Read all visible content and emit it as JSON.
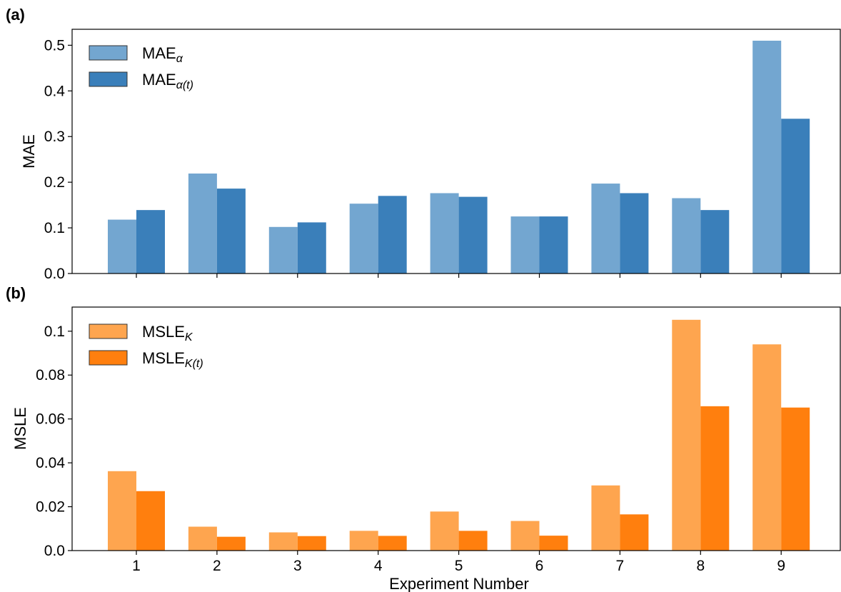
{
  "chart_data": [
    {
      "type": "bar",
      "panel_label": "(a)",
      "ylabel": "MAE",
      "xlabel": "",
      "categories": [
        "1",
        "2",
        "3",
        "4",
        "5",
        "6",
        "7",
        "8",
        "9"
      ],
      "ylim": [
        0,
        0.535
      ],
      "yticks": [
        "0.0",
        "0.1",
        "0.2",
        "0.3",
        "0.4",
        "0.5"
      ],
      "series": [
        {
          "name_base": "MAE",
          "name_sub": "α",
          "color": "#73a6d0",
          "values": [
            0.118,
            0.219,
            0.102,
            0.153,
            0.176,
            0.125,
            0.197,
            0.165,
            0.51
          ]
        },
        {
          "name_base": "MAE",
          "name_sub": "α(t)",
          "color": "#3a7fba",
          "values": [
            0.139,
            0.186,
            0.112,
            0.17,
            0.168,
            0.125,
            0.176,
            0.139,
            0.339
          ]
        }
      ],
      "legend": "top-left",
      "grid": false
    },
    {
      "type": "bar",
      "panel_label": "(b)",
      "ylabel": "MSLE",
      "xlabel": "Experiment Number",
      "categories": [
        "1",
        "2",
        "3",
        "4",
        "5",
        "6",
        "7",
        "8",
        "9"
      ],
      "ylim": [
        0,
        0.111
      ],
      "yticks": [
        "0.0",
        "0.02",
        "0.04",
        "0.06",
        "0.08",
        "0.1"
      ],
      "series": [
        {
          "name_base": "MSLE",
          "name_sub": "K",
          "color": "#fea54f",
          "values": [
            0.0362,
            0.0109,
            0.0083,
            0.009,
            0.0178,
            0.0135,
            0.0297,
            0.1052,
            0.094
          ]
        },
        {
          "name_base": "MSLE",
          "name_sub": "K(t)",
          "color": "#ff7f0e",
          "values": [
            0.0271,
            0.0063,
            0.0066,
            0.0067,
            0.009,
            0.0068,
            0.0165,
            0.0658,
            0.0652
          ]
        }
      ],
      "legend": "top-left",
      "grid": false
    }
  ]
}
